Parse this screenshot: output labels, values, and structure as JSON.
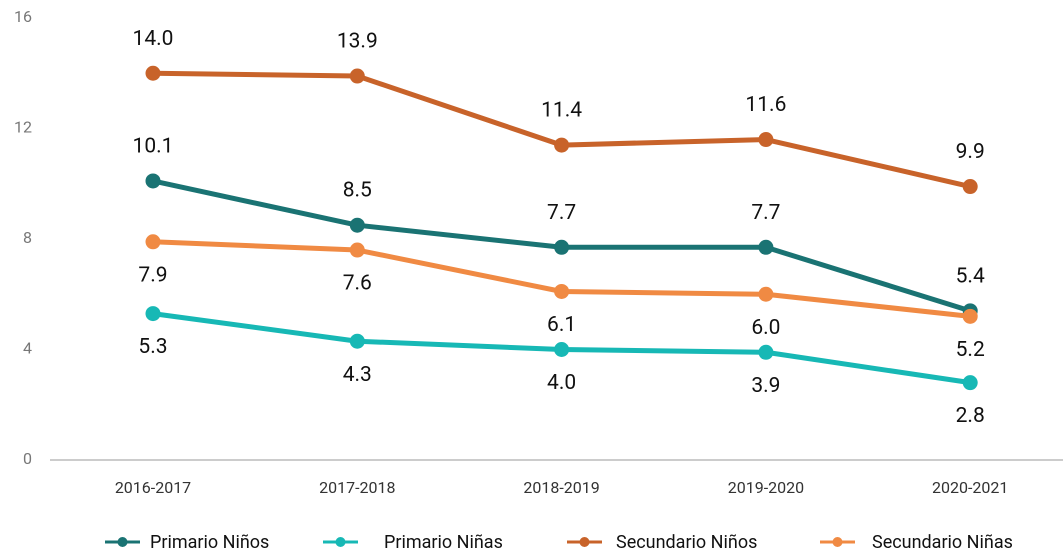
{
  "chart_data": {
    "type": "line",
    "categories": [
      "2016-2017",
      "2017-2018",
      "2018-2019",
      "2019-2020",
      "2020-2021"
    ],
    "series": [
      {
        "name": "Primario Niños",
        "color": "#1a7373",
        "values": [
          10.1,
          8.5,
          7.7,
          7.7,
          5.4
        ],
        "value_labels": [
          "10.1",
          "8.5",
          "7.7",
          "7.7",
          "5.4"
        ],
        "label_position": "above"
      },
      {
        "name": "Primario Niñas",
        "color": "#17b8b5",
        "values": [
          5.3,
          4.3,
          4.0,
          3.9,
          2.8
        ],
        "value_labels": [
          "5.3",
          "4.3",
          "4.0",
          "3.9",
          "2.8"
        ],
        "label_position": "below"
      },
      {
        "name": "Secundario Niños",
        "color": "#c8632a",
        "values": [
          14.0,
          13.9,
          11.4,
          11.6,
          9.9
        ],
        "value_labels": [
          "14.0",
          "13.9",
          "11.4",
          "11.6",
          "9.9"
        ],
        "label_position": "above"
      },
      {
        "name": "Secundario Niñas",
        "color": "#f08a43",
        "values": [
          7.9,
          7.6,
          6.1,
          6.0,
          5.2
        ],
        "value_labels": [
          "7.9",
          "7.6",
          "6.1",
          "6.0",
          "5.2"
        ],
        "label_position": "below"
      }
    ],
    "ylim": [
      0,
      16
    ],
    "yticks": [
      0,
      4,
      8,
      12,
      16
    ],
    "legend": "bottom"
  }
}
